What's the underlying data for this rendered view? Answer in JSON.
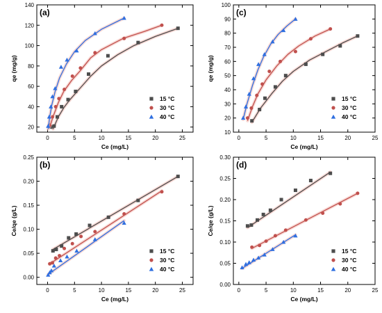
{
  "colors": {
    "15": "#4d4d4d",
    "30": "#c0504d",
    "40": "#2f6fe0"
  },
  "chart_data": [
    {
      "id": "a",
      "type": "scatter",
      "panel_label": "(a)",
      "xlabel": "Ce (mg/L)",
      "ylabel": "qe (mg/g)",
      "xlim": [
        -2,
        27
      ],
      "ylim": [
        15,
        140
      ],
      "xticks": [
        0,
        5,
        10,
        15,
        20,
        25
      ],
      "yticks": [
        20,
        40,
        60,
        80,
        100,
        120,
        140
      ],
      "legend_position": "lower-right",
      "series": [
        {
          "name": "15 °C",
          "marker": "square",
          "color_key": "15",
          "points": [
            [
              0.6,
              20
            ],
            [
              1.2,
              21
            ],
            [
              1.8,
              30
            ],
            [
              2.6,
              40
            ],
            [
              3.8,
              47
            ],
            [
              5.2,
              55
            ],
            [
              7.6,
              72
            ],
            [
              11.2,
              90
            ],
            [
              16.8,
              103
            ],
            [
              24.2,
              117
            ]
          ],
          "fit": [
            [
              1.0,
              18
            ],
            [
              2,
              30
            ],
            [
              3,
              39
            ],
            [
              4,
              46
            ],
            [
              6,
              58
            ],
            [
              8,
              70
            ],
            [
              10,
              80
            ],
            [
              13,
              91
            ],
            [
              16,
              100
            ],
            [
              20,
              109
            ],
            [
              24.2,
              117
            ]
          ]
        },
        {
          "name": "30 °C",
          "marker": "circle",
          "color_key": "30",
          "points": [
            [
              0.4,
              22
            ],
            [
              0.9,
              30
            ],
            [
              1.5,
              40
            ],
            [
              2.1,
              48
            ],
            [
              3.1,
              57
            ],
            [
              4.6,
              70
            ],
            [
              6.1,
              78
            ],
            [
              8.8,
              93
            ],
            [
              14.2,
              107
            ],
            [
              21.2,
              120
            ]
          ],
          "fit": [
            [
              0.4,
              20
            ],
            [
              1,
              30
            ],
            [
              2,
              44
            ],
            [
              3,
              55
            ],
            [
              4.5,
              66
            ],
            [
              6,
              75
            ],
            [
              8,
              88
            ],
            [
              10,
              96
            ],
            [
              14,
              107
            ],
            [
              18,
              114
            ],
            [
              21.2,
              120
            ]
          ]
        },
        {
          "name": "40 °C",
          "marker": "triangle",
          "color_key": "40",
          "points": [
            [
              0.1,
              21
            ],
            [
              0.3,
              30
            ],
            [
              0.6,
              40
            ],
            [
              0.9,
              50
            ],
            [
              1.4,
              58
            ],
            [
              2.5,
              79
            ],
            [
              3.6,
              86
            ],
            [
              5.4,
              95
            ],
            [
              8.8,
              112
            ],
            [
              14.2,
              127
            ]
          ],
          "fit": [
            [
              0.1,
              18
            ],
            [
              0.4,
              30
            ],
            [
              0.8,
              42
            ],
            [
              1.4,
              55
            ],
            [
              2.2,
              68
            ],
            [
              3.5,
              82
            ],
            [
              5,
              94
            ],
            [
              7,
              105
            ],
            [
              10,
              116
            ],
            [
              14.2,
              127
            ]
          ]
        }
      ]
    },
    {
      "id": "b",
      "type": "scatter",
      "panel_label": "(b)",
      "xlabel": "Ce (mg/L)",
      "ylabel": "Ce/qe (g/L)",
      "xlim": [
        -2,
        27
      ],
      "ylim": [
        -0.015,
        0.25
      ],
      "xticks": [
        0,
        5,
        10,
        15,
        20,
        25
      ],
      "yticks": [
        0.0,
        0.05,
        0.1,
        0.15,
        0.2,
        0.25
      ],
      "ytick_labels": [
        "0.00",
        "0.05",
        "0.10",
        "0.15",
        "0.20",
        "0.25"
      ],
      "legend_position": "lower-right",
      "series": [
        {
          "name": "15 °C",
          "marker": "square",
          "color_key": "15",
          "points": [
            [
              1.0,
              0.055
            ],
            [
              1.6,
              0.058
            ],
            [
              2.6,
              0.065
            ],
            [
              3.9,
              0.082
            ],
            [
              5.3,
              0.09
            ],
            [
              7.8,
              0.108
            ],
            [
              11.3,
              0.125
            ],
            [
              16.8,
              0.16
            ],
            [
              24.2,
              0.21
            ]
          ],
          "fit": [
            [
              1.0,
              0.058
            ],
            [
              24.2,
              0.21
            ]
          ]
        },
        {
          "name": "30 °C",
          "marker": "circle",
          "color_key": "30",
          "points": [
            [
              0.4,
              0.028
            ],
            [
              0.9,
              0.03
            ],
            [
              1.5,
              0.04
            ],
            [
              2.2,
              0.045
            ],
            [
              3.1,
              0.06
            ],
            [
              4.6,
              0.07
            ],
            [
              6.2,
              0.085
            ],
            [
              8.8,
              0.095
            ],
            [
              14.2,
              0.132
            ],
            [
              21.2,
              0.178
            ]
          ],
          "fit": [
            [
              0.4,
              0.028
            ],
            [
              21.2,
              0.18
            ]
          ]
        },
        {
          "name": "40 °C",
          "marker": "triangle",
          "color_key": "40",
          "points": [
            [
              0.1,
              0.005
            ],
            [
              0.4,
              0.01
            ],
            [
              0.7,
              0.014
            ],
            [
              1.2,
              0.024
            ],
            [
              2.4,
              0.035
            ],
            [
              3.6,
              0.043
            ],
            [
              5.4,
              0.055
            ],
            [
              8.8,
              0.079
            ],
            [
              14.2,
              0.113
            ]
          ],
          "fit": [
            [
              0.1,
              0.006
            ],
            [
              14.2,
              0.118
            ]
          ]
        }
      ]
    },
    {
      "id": "c",
      "type": "scatter",
      "panel_label": "(c)",
      "xlabel": "Ce (mg/L)",
      "ylabel": "qe (mg/g)",
      "xlim": [
        -1,
        25
      ],
      "ylim": [
        10,
        100
      ],
      "xticks": [
        0,
        5,
        10,
        15,
        20,
        25
      ],
      "yticks": [
        10,
        20,
        30,
        40,
        50,
        60,
        70,
        80,
        90,
        100
      ],
      "legend_position": "lower-right",
      "series": [
        {
          "name": "15 °C",
          "marker": "square",
          "color_key": "15",
          "points": [
            [
              2.4,
              18
            ],
            [
              3.8,
              26
            ],
            [
              4.8,
              34
            ],
            [
              6.7,
              42
            ],
            [
              8.6,
              50
            ],
            [
              12.3,
              58
            ],
            [
              15.4,
              65
            ],
            [
              18.6,
              71
            ],
            [
              21.8,
              78
            ]
          ],
          "fit": [
            [
              2.4,
              17
            ],
            [
              4,
              27
            ],
            [
              6,
              37
            ],
            [
              8,
              46
            ],
            [
              10,
              53
            ],
            [
              13,
              61
            ],
            [
              16,
              67
            ],
            [
              19,
              73
            ],
            [
              21.8,
              78
            ]
          ]
        },
        {
          "name": "30 °C",
          "marker": "circle",
          "color_key": "30",
          "points": [
            [
              1.6,
              20
            ],
            [
              2.3,
              27
            ],
            [
              3.3,
              36
            ],
            [
              4.3,
              44
            ],
            [
              5.6,
              53
            ],
            [
              7.6,
              60
            ],
            [
              10.4,
              67
            ],
            [
              13.2,
              76
            ],
            [
              16.8,
              83
            ]
          ],
          "fit": [
            [
              1.6,
              18
            ],
            [
              2.5,
              28
            ],
            [
              3.5,
              37
            ],
            [
              5,
              47
            ],
            [
              7,
              57
            ],
            [
              9,
              65
            ],
            [
              11,
              71
            ],
            [
              14,
              78
            ],
            [
              16.8,
              83
            ]
          ]
        },
        {
          "name": "40 °C",
          "marker": "triangle",
          "color_key": "40",
          "points": [
            [
              0.8,
              20
            ],
            [
              1.3,
              28
            ],
            [
              1.9,
              37
            ],
            [
              2.7,
              48
            ],
            [
              3.6,
              58
            ],
            [
              4.7,
              65
            ],
            [
              6.2,
              74
            ],
            [
              8.2,
              82
            ],
            [
              10.4,
              90
            ]
          ],
          "fit": [
            [
              0.8,
              19
            ],
            [
              1.5,
              30
            ],
            [
              2.5,
              43
            ],
            [
              3.5,
              54
            ],
            [
              4.5,
              63
            ],
            [
              5.8,
              72
            ],
            [
              7.2,
              79
            ],
            [
              8.8,
              85
            ],
            [
              10.4,
              90
            ]
          ]
        }
      ]
    },
    {
      "id": "d",
      "type": "scatter",
      "panel_label": "(d)",
      "xlabel": "Ce (mg/L)",
      "ylabel": "Ce/qe (g/L)",
      "xlim": [
        -1,
        25
      ],
      "ylim": [
        0.0,
        0.3
      ],
      "xticks": [
        0,
        5,
        10,
        15,
        20,
        25
      ],
      "yticks": [
        0.0,
        0.05,
        0.1,
        0.15,
        0.2,
        0.25,
        0.3
      ],
      "ytick_labels": [
        "0.00",
        "0.05",
        "0.10",
        "0.15",
        "0.20",
        "0.25",
        "0.30"
      ],
      "legend_position": "lower-right",
      "series": [
        {
          "name": "15 °C",
          "marker": "square",
          "color_key": "15",
          "points": [
            [
              1.6,
              0.138
            ],
            [
              2.3,
              0.14
            ],
            [
              3.4,
              0.152
            ],
            [
              4.5,
              0.165
            ],
            [
              5.8,
              0.175
            ],
            [
              7.8,
              0.2
            ],
            [
              10.4,
              0.222
            ],
            [
              13.2,
              0.245
            ],
            [
              16.8,
              0.262
            ]
          ],
          "fit": [
            [
              1.6,
              0.134
            ],
            [
              16.8,
              0.265
            ]
          ]
        },
        {
          "name": "30 °C",
          "marker": "circle",
          "color_key": "30",
          "points": [
            [
              2.4,
              0.088
            ],
            [
              3.8,
              0.092
            ],
            [
              5.0,
              0.102
            ],
            [
              6.7,
              0.115
            ],
            [
              8.6,
              0.128
            ],
            [
              12.3,
              0.152
            ],
            [
              15.4,
              0.168
            ],
            [
              18.6,
              0.19
            ],
            [
              21.8,
              0.215
            ]
          ],
          "fit": [
            [
              2.4,
              0.085
            ],
            [
              21.8,
              0.215
            ]
          ]
        },
        {
          "name": "40 °C",
          "marker": "triangle",
          "color_key": "40",
          "points": [
            [
              0.6,
              0.04
            ],
            [
              1.3,
              0.048
            ],
            [
              1.9,
              0.052
            ],
            [
              2.7,
              0.058
            ],
            [
              3.6,
              0.063
            ],
            [
              4.7,
              0.07
            ],
            [
              6.2,
              0.083
            ],
            [
              8.2,
              0.1
            ],
            [
              10.4,
              0.115
            ]
          ],
          "fit": [
            [
              0.6,
              0.038
            ],
            [
              10.4,
              0.117
            ]
          ]
        }
      ]
    }
  ]
}
